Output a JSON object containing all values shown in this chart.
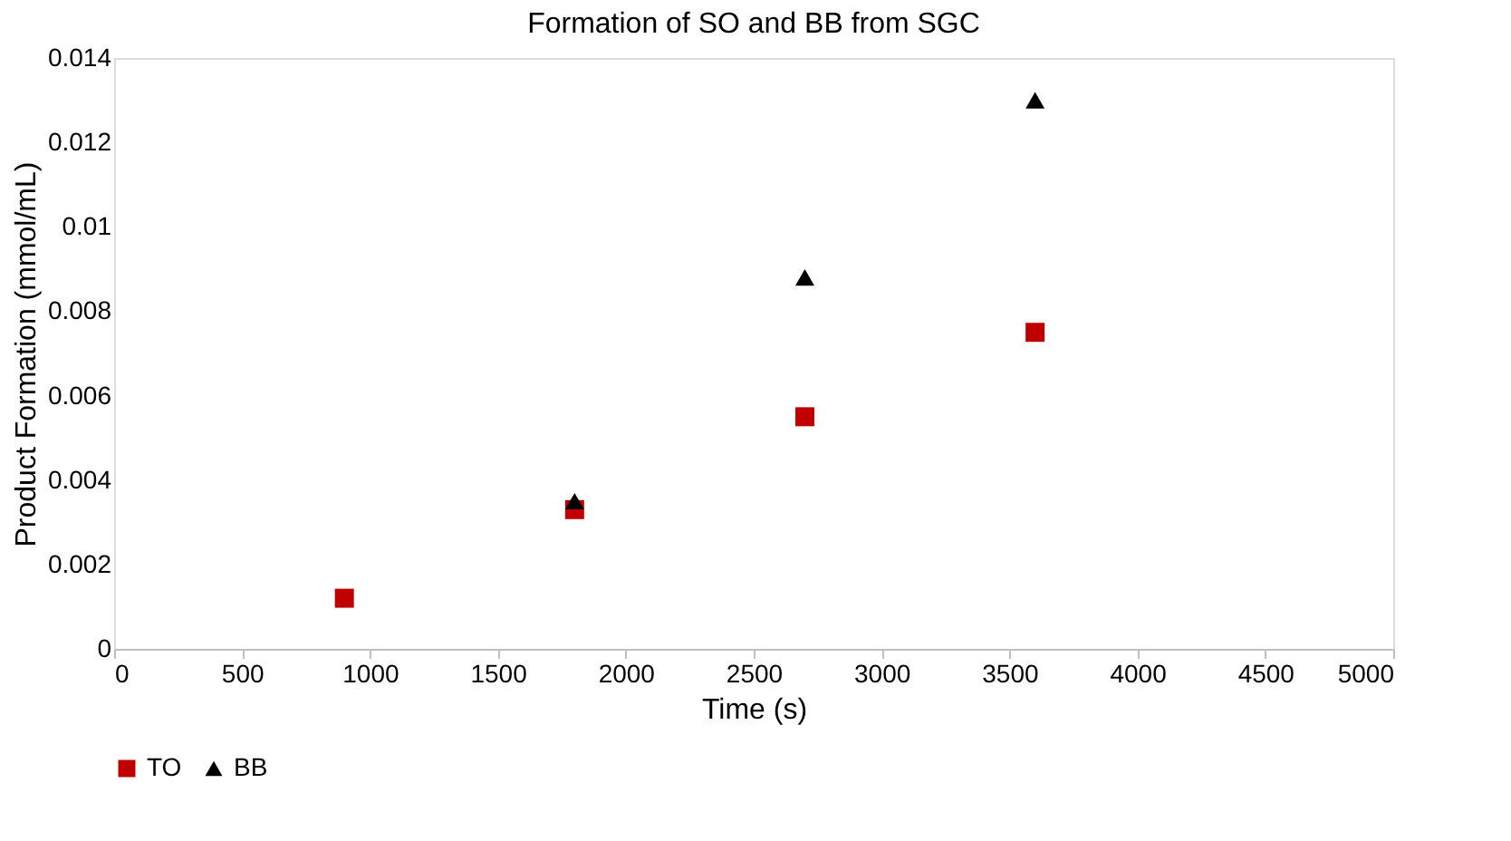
{
  "chart_data": {
    "type": "scatter",
    "title": "Formation of SO and BB from SGC",
    "xlabel": "Time (s)",
    "ylabel": "Product Formation (mmol/mL)",
    "xlim": [
      0,
      5000
    ],
    "xticks": [
      0,
      500,
      1000,
      1500,
      2000,
      2500,
      3000,
      3500,
      4000,
      4500,
      5000
    ],
    "ylim": [
      0,
      0.014
    ],
    "yticks": [
      0,
      0.002,
      0.004,
      0.006,
      0.008,
      0.01,
      0.012,
      0.014
    ],
    "grid": false,
    "legend": "bottom",
    "series": [
      {
        "name": "TO",
        "color": "#c00000",
        "marker": "square",
        "x": [
          900,
          1800,
          2700,
          3600
        ],
        "values": [
          0.0012,
          0.0033,
          0.0055,
          0.0075
        ]
      },
      {
        "name": "BB",
        "color": "#000000",
        "marker": "triangle",
        "x": [
          1800,
          2700,
          3600
        ],
        "values": [
          0.0035,
          0.0088,
          0.013
        ]
      }
    ]
  }
}
